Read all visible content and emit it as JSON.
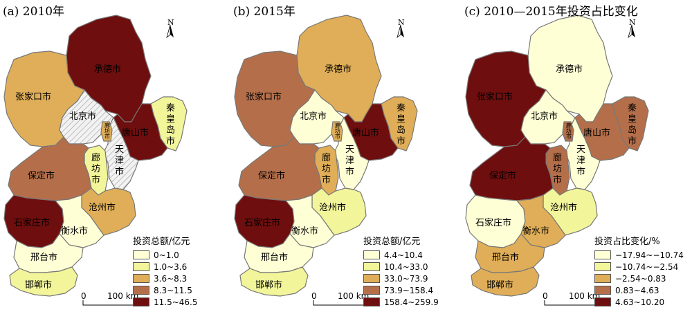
{
  "colors": {
    "c1": "#FFFFD6",
    "c2": "#F2F59A",
    "c3": "#E0AE58",
    "c4": "#B46F4A",
    "c5": "#6E0E0E",
    "hatch_bg": "#F2F2F2",
    "hatch_line": "#9A9A9A"
  },
  "cities": {
    "chengde": "承德市",
    "zhangjiakou": "张家口市",
    "beijing": "北京市",
    "tianjin": "天津市",
    "qinhuangdao": "秦皇岛市",
    "tangshan": "唐山市",
    "langfang": "廊坊市",
    "langfang_north": "廊坊市",
    "baoding": "保定市",
    "cangzhou": "沧州市",
    "shijiazhuang": "石家庄市",
    "hengshui": "衡水市",
    "xingtai": "邢台市",
    "handan": "邯郸市"
  },
  "north_label": "N",
  "scale": {
    "zero": "0",
    "distance": "100 km"
  },
  "panels": [
    {
      "title": "(a) 2010年",
      "legend_title": "投资总额/亿元",
      "legend": [
        "0~1.0",
        "1.0~3.6",
        "3.6~8.3",
        "8.3~11.5",
        "11.5~46.5"
      ],
      "classes": {
        "chengde": "c5",
        "zhangjiakou": "c3",
        "beijing": "hatch",
        "tianjin": "hatch",
        "qinhuangdao": "c2",
        "tangshan": "c5",
        "langfang": "c2",
        "langfang_north": "c3",
        "baoding": "c4",
        "cangzhou": "c3",
        "shijiazhuang": "c5",
        "hengshui": "c1",
        "xingtai": "c1",
        "handan": "c2"
      }
    },
    {
      "title": "(b) 2015年",
      "legend_title": "投资总额/亿元",
      "legend": [
        "4.4~10.4",
        "10.4~33.0",
        "33.0~73.9",
        "73.9~158.4",
        "158.4~259.9"
      ],
      "classes": {
        "chengde": "c3",
        "zhangjiakou": "c4",
        "beijing": "c1",
        "tianjin": "c1",
        "qinhuangdao": "c3",
        "tangshan": "c5",
        "langfang": "c3",
        "langfang_north": "c3",
        "baoding": "c4",
        "cangzhou": "c2",
        "shijiazhuang": "c5",
        "hengshui": "c1",
        "xingtai": "c1",
        "handan": "c2"
      }
    },
    {
      "title": "(c) 2010—2015年投资占比变化",
      "legend_title": "投资占比变化/%",
      "legend": [
        "−17.94~−10.74",
        "−10.74~−2.54",
        "−2.54~0.83",
        "0.83~4.63",
        "4.63~10.20"
      ],
      "classes": {
        "chengde": "c1",
        "zhangjiakou": "c5",
        "beijing": "c1",
        "tianjin": "c1",
        "qinhuangdao": "c4",
        "tangshan": "c4",
        "langfang": "c4",
        "langfang_north": "c4",
        "baoding": "c5",
        "cangzhou": "c2",
        "shijiazhuang": "c1",
        "hengshui": "c3",
        "xingtai": "c3",
        "handan": "c3"
      }
    }
  ]
}
